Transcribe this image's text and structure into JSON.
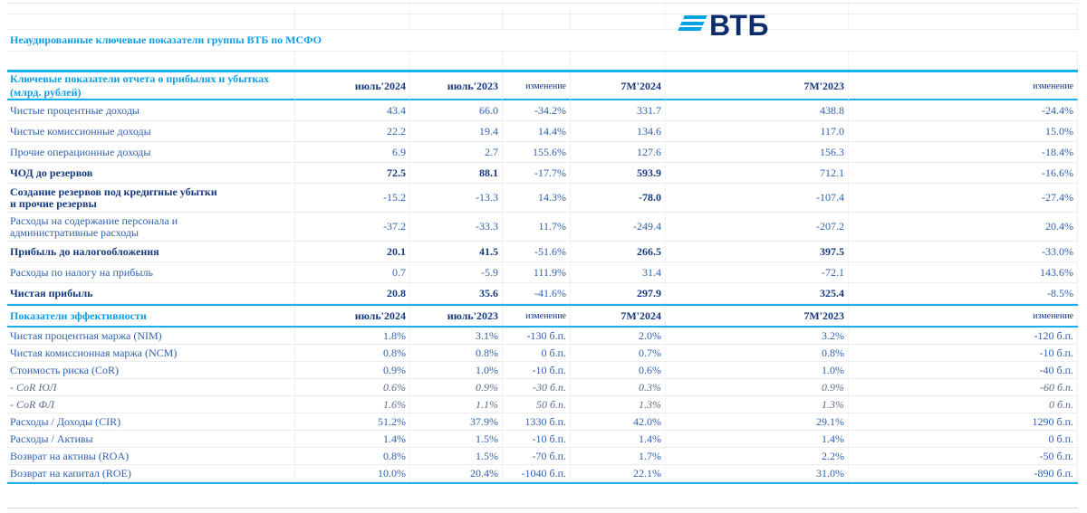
{
  "logo": {
    "brand": "ВТБ",
    "icon": "vtb-stripes-icon"
  },
  "title": "Неаудированные ключевые показатели группы ВТБ по МСФО",
  "columns": [
    "июль'2024",
    "июль'2023",
    "изменение",
    "7М'2024",
    "7М'2023",
    "изменение"
  ],
  "colors": {
    "accent_cyan": "#17b1ef",
    "section_azure": "#0f9ee3",
    "navy": "#163a7d",
    "value_blue": "#3061ae",
    "logo_blue": "#00a3e2",
    "logo_navy": "#0b2d6e"
  },
  "sections": [
    {
      "header": "Ключевые показатели отчета о прибылях и убытках (млрд. рублей)",
      "compact": false,
      "rows": [
        {
          "cells": [
            "Чистые процентные доходы",
            "43.4",
            "66.0",
            "-34.2%",
            "331.7",
            "438.8",
            "-24.4%"
          ]
        },
        {
          "cells": [
            "Чистые комиссионные доходы",
            "22.2",
            "19.4",
            "14.4%",
            "134.6",
            "117.0",
            "15.0%"
          ]
        },
        {
          "cells": [
            "Прочие операционные доходы",
            "6.9",
            "2.7",
            "155.6%",
            "127.6",
            "156.3",
            "-18.4%"
          ]
        },
        {
          "cells": [
            "ЧОД до резервов",
            "72.5",
            "88.1",
            "-17.7%",
            "593.9",
            "712.1",
            "-16.6%"
          ],
          "bold": [
            1,
            1,
            1,
            0,
            1,
            0,
            0
          ]
        },
        {
          "cells": [
            "Создание резервов под кредитные убытки\nи прочие резервы",
            "-15.2",
            "-13.3",
            "14.3%",
            "-78.0",
            "-107.4",
            "-27.4%"
          ],
          "bold": [
            1,
            0,
            0,
            0,
            1,
            0,
            0
          ]
        },
        {
          "cells": [
            "Расходы на содержание персонала и\nадминистративные расходы",
            "-37.2",
            "-33.3",
            "11.7%",
            "-249.4",
            "-207.2",
            "20.4%"
          ]
        },
        {
          "cells": [
            "Прибыль до налогообложения",
            "20.1",
            "41.5",
            "-51.6%",
            "266.5",
            "397.5",
            "-33.0%"
          ],
          "bold": [
            1,
            1,
            1,
            0,
            1,
            1,
            0
          ]
        },
        {
          "cells": [
            "Расходы по налогу на прибыль",
            "0.7",
            "-5.9",
            "111.9%",
            "31.4",
            "-72.1",
            "143.6%"
          ]
        },
        {
          "cells": [
            "Чистая прибыль",
            "20.8",
            "35.6",
            "-41.6%",
            "297.9",
            "325.4",
            "-8.5%"
          ],
          "bold": [
            1,
            1,
            1,
            0,
            1,
            1,
            0
          ]
        }
      ]
    },
    {
      "header": "Показатели эффективности",
      "compact": true,
      "rows": [
        {
          "cells": [
            "Чистая процентная маржа (NIM)",
            "1.8%",
            "3.1%",
            "-130 б.п.",
            "2.0%",
            "3.2%",
            "-120 б.п."
          ]
        },
        {
          "cells": [
            "Чистая комиссионная маржа (NCM)",
            "0.8%",
            "0.8%",
            "0 б.п.",
            "0.7%",
            "0.8%",
            "-10 б.п."
          ]
        },
        {
          "cells": [
            "Стоимость риска (CoR)",
            "0.9%",
            "1.0%",
            "-10 б.п.",
            "0.6%",
            "1.0%",
            "-40 б.п."
          ]
        },
        {
          "cells": [
            "-  CoR ЮЛ",
            "0.6%",
            "0.9%",
            "-30 б.п.",
            "0.3%",
            "0.9%",
            "-60 б.п."
          ],
          "italic": true
        },
        {
          "cells": [
            "-  CoR ФЛ",
            "1.6%",
            "1.1%",
            "50 б.п.",
            "1.3%",
            "1.3%",
            "0 б.п."
          ],
          "italic": true
        },
        {
          "cells": [
            "Расходы / Доходы (CIR)",
            "51.2%",
            "37.9%",
            "1330 б.п.",
            "42.0%",
            "29.1%",
            "1290 б.п."
          ]
        },
        {
          "cells": [
            "Расходы / Активы",
            "1.4%",
            "1.5%",
            "-10 б.п.",
            "1.4%",
            "1.4%",
            "0 б.п."
          ]
        },
        {
          "cells": [
            "Возврат на активы (ROA)",
            "0.8%",
            "1.5%",
            "-70 б.п.",
            "1.7%",
            "2.2%",
            "-50 б.п."
          ]
        },
        {
          "cells": [
            "Возврат на капитал (ROE)",
            "10.0%",
            "20.4%",
            "-1040 б.п.",
            "22.1%",
            "31.0%",
            "-890 б.п."
          ]
        }
      ]
    }
  ]
}
